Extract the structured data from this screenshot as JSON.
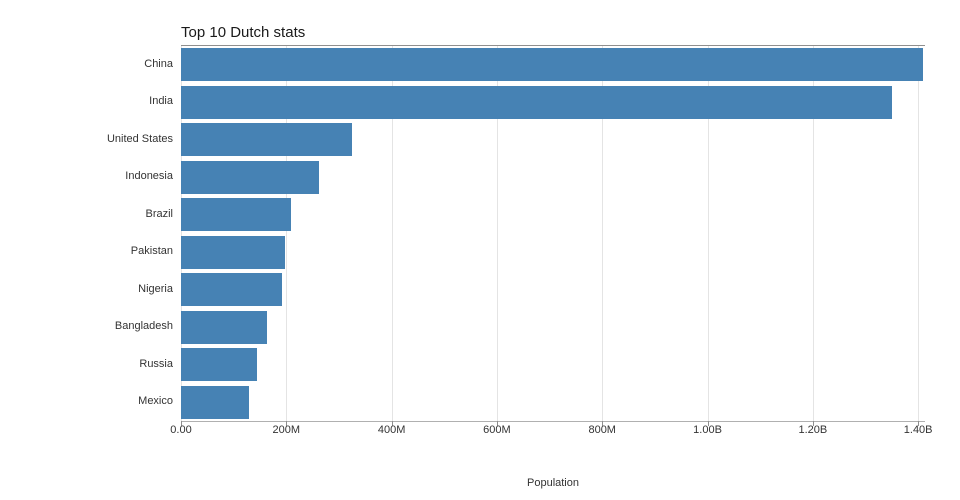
{
  "chart_data": {
    "type": "bar",
    "orientation": "horizontal",
    "title": "Top 10 Dutch stats",
    "xlabel": "Population",
    "ylabel": "",
    "categories": [
      "China",
      "India",
      "United States",
      "Indonesia",
      "Brazil",
      "Pakistan",
      "Nigeria",
      "Bangladesh",
      "Russia",
      "Mexico"
    ],
    "values": [
      1410000000,
      1350000000,
      325000000,
      262000000,
      209000000,
      197000000,
      191000000,
      163000000,
      144000000,
      129000000
    ],
    "xlim": [
      0,
      1413000000
    ],
    "ticks": [
      {
        "value": 0,
        "label": "0.00"
      },
      {
        "value": 200000000,
        "label": "200M"
      },
      {
        "value": 400000000,
        "label": "400M"
      },
      {
        "value": 600000000,
        "label": "600M"
      },
      {
        "value": 800000000,
        "label": "800M"
      },
      {
        "value": 1000000000,
        "label": "1.00B"
      },
      {
        "value": 1200000000,
        "label": "1.20B"
      },
      {
        "value": 1400000000,
        "label": "1.40B"
      }
    ],
    "bar_color": "#4682b4",
    "grid": true,
    "legend": false,
    "background": "#ffffff"
  }
}
